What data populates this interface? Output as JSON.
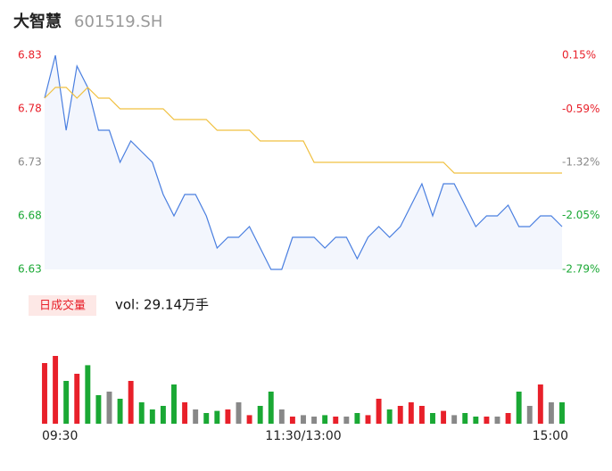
{
  "header": {
    "name": "大智慧",
    "code": "601519.SH"
  },
  "chart_data": {
    "type": "line",
    "x": [
      0,
      5,
      10,
      15,
      20,
      25,
      30,
      35,
      40,
      45,
      50,
      55,
      60,
      65,
      70,
      75,
      80,
      85,
      90,
      95,
      100,
      105,
      110,
      115,
      120,
      125,
      130,
      135,
      140,
      145,
      150,
      155,
      160,
      165,
      170,
      175,
      180,
      185,
      190,
      195,
      200,
      205,
      210,
      215,
      220,
      225,
      230,
      235,
      240
    ],
    "xlim": [
      0,
      240
    ],
    "xticks": [
      {
        "value": 0,
        "label": "09:30"
      },
      {
        "value": 120,
        "label": "11:30/13:00"
      },
      {
        "value": 240,
        "label": "15:00"
      }
    ],
    "series": [
      {
        "name": "price",
        "color": "#4a7fe0",
        "values": [
          6.79,
          6.83,
          6.76,
          6.82,
          6.8,
          6.76,
          6.76,
          6.73,
          6.75,
          6.74,
          6.73,
          6.7,
          6.68,
          6.7,
          6.7,
          6.68,
          6.65,
          6.66,
          6.66,
          6.67,
          6.65,
          6.63,
          6.63,
          6.66,
          6.66,
          6.66,
          6.65,
          6.66,
          6.66,
          6.64,
          6.66,
          6.67,
          6.66,
          6.67,
          6.69,
          6.71,
          6.68,
          6.71,
          6.71,
          6.69,
          6.67,
          6.68,
          6.68,
          6.69,
          6.67,
          6.67,
          6.68,
          6.68,
          6.67
        ]
      },
      {
        "name": "average",
        "color": "#f0c040",
        "values": [
          6.79,
          6.8,
          6.8,
          6.79,
          6.8,
          6.79,
          6.79,
          6.78,
          6.78,
          6.78,
          6.78,
          6.78,
          6.77,
          6.77,
          6.77,
          6.77,
          6.76,
          6.76,
          6.76,
          6.76,
          6.75,
          6.75,
          6.75,
          6.75,
          6.75,
          6.73,
          6.73,
          6.73,
          6.73,
          6.73,
          6.73,
          6.73,
          6.73,
          6.73,
          6.73,
          6.73,
          6.73,
          6.73,
          6.72,
          6.72,
          6.72,
          6.72,
          6.72,
          6.72,
          6.72,
          6.72,
          6.72,
          6.72,
          6.72
        ]
      }
    ],
    "ylim": [
      6.63,
      6.83
    ],
    "yticks": [
      6.63,
      6.68,
      6.73,
      6.78,
      6.83
    ],
    "y2lim": [
      -2.79,
      0.15
    ],
    "y2ticks": [
      {
        "value": -2.79,
        "label": "-2.79%"
      },
      {
        "value": -2.05,
        "label": "-2.05%"
      },
      {
        "value": -1.32,
        "label": "-1.32%"
      },
      {
        "value": -0.59,
        "label": "-0.59%"
      },
      {
        "value": 0.15,
        "label": "0.15%"
      }
    ],
    "up_color": "#e8202a",
    "down_color": "#1aa834",
    "flat_color": "#888888",
    "volume": {
      "title": "日成交量",
      "total": "vol: 29.14万手",
      "ylim": [
        0,
        1.0
      ],
      "values": [
        0.85,
        0.95,
        0.6,
        0.7,
        0.82,
        0.4,
        0.45,
        0.35,
        0.6,
        0.3,
        0.2,
        0.25,
        0.55,
        0.3,
        0.2,
        0.15,
        0.18,
        0.2,
        0.3,
        0.12,
        0.25,
        0.45,
        0.2,
        0.1,
        0.12,
        0.1,
        0.12,
        0.1,
        0.1,
        0.15,
        0.12,
        0.35,
        0.2,
        0.25,
        0.3,
        0.25,
        0.15,
        0.18,
        0.12,
        0.15,
        0.1,
        0.1,
        0.1,
        0.15,
        0.45,
        0.25,
        0.55,
        0.3,
        0.3
      ]
    }
  }
}
